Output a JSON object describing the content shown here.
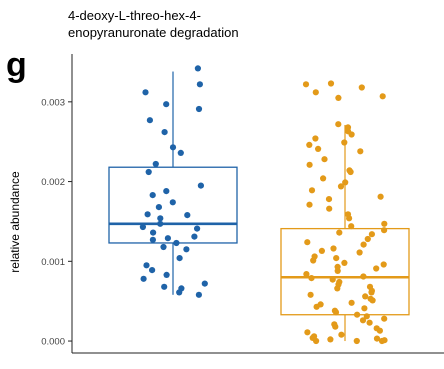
{
  "panel_letter": "g",
  "chart_data": {
    "type": "box",
    "title_lines": [
      "4-deoxy-L-threo-hex-4-",
      "enopyranuronate degradation"
    ],
    "ylabel": "relative abundance",
    "xlabel": "",
    "ylim": [
      -0.00015,
      0.0036
    ],
    "yticks": [
      0.0,
      0.001,
      0.002,
      0.003
    ],
    "ytick_labels": [
      "0.000",
      "0.001",
      "0.002",
      "0.003"
    ],
    "grid": false,
    "legend": "none",
    "groups": [
      {
        "color": "#1f63a8",
        "box": {
          "q1": 0.00123,
          "median": 0.00147,
          "q3": 0.00218,
          "whisker_low": 0.00058,
          "whisker_high": 0.00338
        },
        "points": [
          0.00342,
          0.00322,
          0.00312,
          0.00297,
          0.00291,
          0.00277,
          0.00262,
          0.00243,
          0.00236,
          0.00222,
          0.00212,
          0.00195,
          0.00188,
          0.00183,
          0.00174,
          0.00168,
          0.00159,
          0.00158,
          0.00154,
          0.00147,
          0.00143,
          0.00141,
          0.00136,
          0.00131,
          0.00129,
          0.00127,
          0.00123,
          0.00118,
          0.00115,
          0.00104,
          0.00095,
          0.00089,
          0.00083,
          0.00078,
          0.00072,
          0.00068,
          0.00066,
          0.00061,
          0.00058
        ]
      },
      {
        "color": "#e39a19",
        "box": {
          "q1": 0.00033,
          "median": 0.0008,
          "q3": 0.00141,
          "whisker_low": 0.0,
          "whisker_high": 0.00271
        },
        "points": [
          0.00323,
          0.00322,
          0.00318,
          0.00312,
          0.00307,
          0.00305,
          0.00272,
          0.00268,
          0.00263,
          0.00259,
          0.00254,
          0.00249,
          0.00246,
          0.00241,
          0.00238,
          0.00228,
          0.00221,
          0.00214,
          0.00212,
          0.00204,
          0.00199,
          0.00194,
          0.00189,
          0.00181,
          0.00178,
          0.00171,
          0.00166,
          0.00159,
          0.00154,
          0.00147,
          0.00144,
          0.00139,
          0.00136,
          0.00134,
          0.00128,
          0.00124,
          0.00121,
          0.00116,
          0.00113,
          0.00111,
          0.00106,
          0.00104,
          0.00101,
          0.00098,
          0.00096,
          0.00093,
          0.00091,
          0.00088,
          0.00084,
          0.00081,
          0.00079,
          0.00077,
          0.00074,
          0.00071,
          0.00068,
          0.00066,
          0.00063,
          0.00061,
          0.00058,
          0.00056,
          0.00053,
          0.00051,
          0.00048,
          0.00046,
          0.00043,
          0.00041,
          0.00038,
          0.00036,
          0.00033,
          0.00031,
          0.00028,
          0.00026,
          0.00023,
          0.00021,
          0.00018,
          0.00016,
          0.00013,
          0.00011,
          8e-05,
          6e-05,
          4e-05,
          3e-05,
          2e-05,
          1e-05,
          0.0,
          0.0,
          0.0
        ]
      }
    ]
  }
}
